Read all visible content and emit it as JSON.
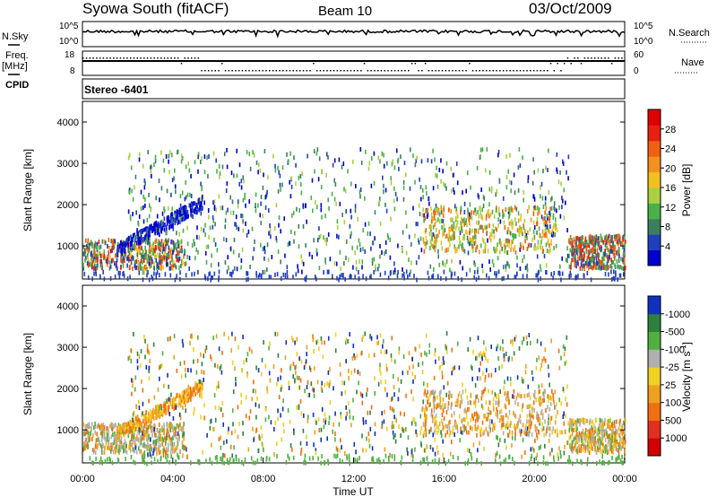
{
  "header": {
    "site": "Syowa South (fitACF)",
    "beam": "Beam 10",
    "date": "03/Oct/2009"
  },
  "side_labels": {
    "nsky": "N.Sky",
    "freq": "Freq.",
    "mhz": "[MHz]",
    "cpid": "CPID",
    "nsearch": "N.Search",
    "nave": "Nave"
  },
  "cpid_text": "Stereo -6401",
  "colors": {
    "power_scale": [
      "#0000cc",
      "#1f3fbf",
      "#3c7f60",
      "#4ab04a",
      "#a8d040",
      "#f2c020",
      "#f39020",
      "#f06010",
      "#e82010",
      "#e00000"
    ],
    "velocity_scale": [
      "#1030c0",
      "#2d8040",
      "#4fb040",
      "#b0b0b0",
      "#f0d020",
      "#f0a020",
      "#f07010",
      "#e03020",
      "#d00000"
    ]
  },
  "chart_data": [
    {
      "type": "line",
      "title": "N.Sky / N.Search",
      "y_tick_labels": [
        "10^5",
        "10^0"
      ],
      "right_tick_labels": [
        "10^5",
        "10^0"
      ],
      "xlim": [
        0,
        24
      ],
      "note": "noise level trace, roughly constant near 10^3.5"
    },
    {
      "type": "scatter",
      "title": "Freq. [MHz] / Nave",
      "y_tick_labels": [
        "18",
        "8"
      ],
      "right_tick_labels": [
        "60",
        "0"
      ],
      "xlim": [
        0,
        24
      ]
    },
    {
      "type": "heatmap",
      "title": "",
      "ylabel": "Slant Range [km]",
      "xlim": [
        0,
        24
      ],
      "ylim": [
        200,
        4500
      ],
      "y_ticks": [
        1000,
        2000,
        3000,
        4000
      ],
      "colorbar_label": "Power [dB]",
      "colorbar_ticks": [
        "4",
        "8",
        "12",
        "16",
        "20",
        "24",
        "28"
      ]
    },
    {
      "type": "heatmap",
      "title": "",
      "ylabel": "Slant Range [km]",
      "xlabel": "Time UT",
      "xlim": [
        0,
        24
      ],
      "ylim": [
        200,
        4500
      ],
      "y_ticks": [
        1000,
        2000,
        3000,
        4000
      ],
      "x_tick_labels": [
        "00:00",
        "04:00",
        "08:00",
        "12:00",
        "16:00",
        "20:00",
        "00:00"
      ],
      "colorbar_label": "Velocity [m s",
      "colorbar_label_exp": "-1",
      "colorbar_label_end": "]",
      "colorbar_ticks": [
        "1000",
        "500",
        "100",
        "25",
        "-25",
        "-100",
        "-500",
        "-1000"
      ]
    }
  ]
}
